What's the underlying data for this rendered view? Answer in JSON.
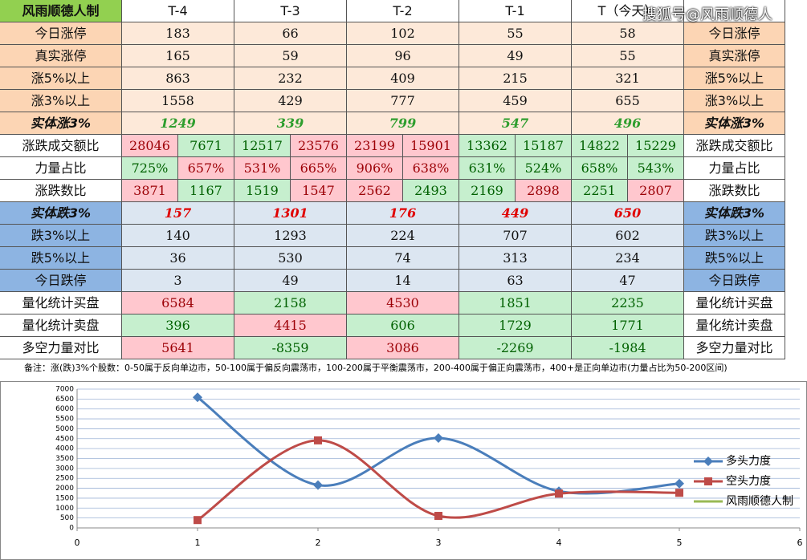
{
  "watermark": "搜狐号@风雨顺德人",
  "table": {
    "corner": "风雨顺德人制",
    "columns": [
      "T-4",
      "T-3",
      "T-2",
      "T-1",
      "T（今天）"
    ],
    "rows": [
      {
        "label": "今日涨停",
        "values": [
          183,
          66,
          102,
          55,
          58
        ]
      },
      {
        "label": "真实涨停",
        "values": [
          165,
          59,
          96,
          49,
          55
        ]
      },
      {
        "label": "涨5%以上",
        "values": [
          863,
          232,
          409,
          215,
          321
        ]
      },
      {
        "label": "涨3%以上",
        "values": [
          1558,
          429,
          777,
          459,
          655
        ]
      },
      {
        "label": "实体涨3%",
        "values": [
          1249,
          339,
          799,
          547,
          496
        ]
      },
      {
        "label": "涨跌成交额比",
        "values": [
          [
            28046,
            7671
          ],
          [
            12517,
            23576
          ],
          [
            23199,
            15901
          ],
          [
            13362,
            15187
          ],
          [
            14822,
            15229
          ]
        ]
      },
      {
        "label": "力量占比",
        "values": [
          [
            "725%",
            "657%"
          ],
          [
            "531%",
            "665%"
          ],
          [
            "906%",
            "638%"
          ],
          [
            "631%",
            "524%"
          ],
          [
            "658%",
            "543%"
          ]
        ]
      },
      {
        "label": "涨跌数比",
        "values": [
          [
            3871,
            1167
          ],
          [
            1519,
            1547
          ],
          [
            2562,
            2493
          ],
          [
            2169,
            2898
          ],
          [
            2251,
            2807
          ]
        ]
      },
      {
        "label": "实体跌3%",
        "values": [
          157,
          1301,
          176,
          449,
          650
        ]
      },
      {
        "label": "跌3%以上",
        "values": [
          140,
          1293,
          224,
          707,
          602
        ]
      },
      {
        "label": "跌5%以上",
        "values": [
          36,
          530,
          74,
          313,
          234
        ]
      },
      {
        "label": "今日跌停",
        "values": [
          3,
          49,
          14,
          63,
          47
        ]
      },
      {
        "label": "量化统计买盘",
        "values": [
          6584,
          2158,
          4530,
          1851,
          2235
        ]
      },
      {
        "label": "量化统计卖盘",
        "values": [
          396,
          4415,
          606,
          1729,
          1771
        ]
      },
      {
        "label": "多空力量对比",
        "values": [
          5641,
          -8359,
          3086,
          -2269,
          -1984
        ]
      }
    ],
    "note": "备注：涨(跌)3%个股数：0-50属于反向单边市，50-100属于偏反向震荡市，100-200属于平衡震荡市，200-400属于偏正向震荡市，400+是正向单边市(力量占比为50-200区间)"
  },
  "chart_data": {
    "type": "line",
    "x": [
      1,
      2,
      3,
      4,
      5
    ],
    "series": [
      {
        "name": "多头力度",
        "color": "#4a7ebb",
        "marker": "diamond",
        "values": [
          6584,
          2158,
          4530,
          1851,
          2235
        ]
      },
      {
        "name": "空头力度",
        "color": "#be4b48",
        "marker": "square",
        "values": [
          396,
          4415,
          606,
          1729,
          1771
        ]
      },
      {
        "name": "风雨顺德人制",
        "color": "#98b954",
        "marker": "none",
        "values": [
          null,
          null,
          null,
          null,
          null
        ]
      }
    ],
    "xlim": [
      0,
      6
    ],
    "xticks": [
      0,
      1,
      2,
      3,
      4,
      5,
      6
    ],
    "ylim": [
      0,
      7000
    ],
    "yticks": [
      0,
      500,
      1000,
      1500,
      2000,
      2500,
      3000,
      3500,
      4000,
      4500,
      5000,
      5500,
      6000,
      6500,
      7000
    ],
    "grid": true,
    "smooth": true,
    "legend": "right"
  }
}
